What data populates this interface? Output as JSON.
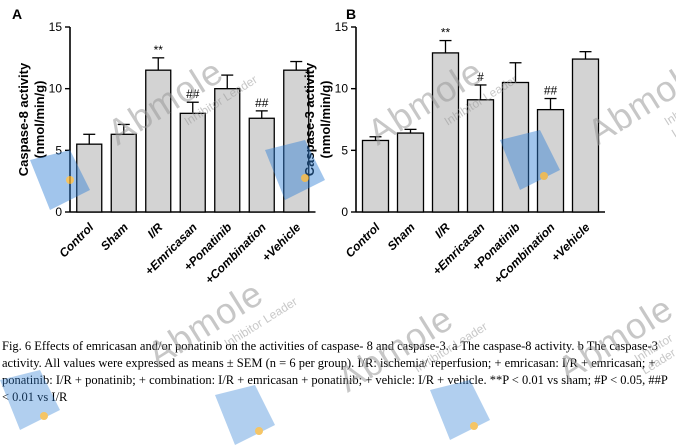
{
  "chart_data": [
    {
      "panel": "A",
      "type": "bar",
      "ylabel": "Caspase-8 activity (nmol/min/g)",
      "ylim": [
        0,
        15
      ],
      "yticks": [
        0,
        5,
        10,
        15
      ],
      "categories": [
        "Control",
        "Sham",
        "I/R",
        "+Emricasan",
        "+Ponatinib",
        "+Combination",
        "+Vehicle"
      ],
      "values": [
        5.5,
        6.3,
        11.5,
        8.0,
        10.0,
        7.6,
        11.5
      ],
      "errors": [
        0.8,
        0.8,
        1.0,
        0.9,
        1.1,
        0.6,
        0.7
      ],
      "annotations": [
        "",
        "",
        "**",
        "##",
        "",
        "##",
        ""
      ],
      "bar_color": "#d3d3d3"
    },
    {
      "panel": "B",
      "type": "bar",
      "ylabel": "Caspase-3 activity (nmol/min/g)",
      "ylim": [
        0,
        15
      ],
      "yticks": [
        0,
        5,
        10,
        15
      ],
      "categories": [
        "Control",
        "Sham",
        "I/R",
        "+Emricasan",
        "+Ponatinib",
        "+Combination",
        "+Vehicle"
      ],
      "values": [
        5.8,
        6.4,
        12.9,
        9.1,
        10.5,
        8.3,
        12.4
      ],
      "errors": [
        0.3,
        0.3,
        1.0,
        1.2,
        1.6,
        0.9,
        0.6
      ],
      "annotations": [
        "",
        "",
        "**",
        "#",
        "",
        "##",
        ""
      ],
      "bar_color": "#d3d3d3"
    }
  ],
  "caption": "Fig. 6 Effects of emricasan and/or ponatinib on the activities of caspase- 8 and caspase-3. a The caspase-8 activity. b The caspase-3 activity. All values were expressed as means ± SEM (n = 6 per group). I/R: ischemia/ reperfusion; + emricasan: I/R + emricasan; + ponatinib: I/R + ponatinib; + combination: I/R + emricasan + ponatinib; + vehicle: I/R + vehicle. **P < 0.01 vs sham; #P < 0.05, ##P < 0.01 vs I/R",
  "watermark": {
    "logo": "Abmole",
    "tagline": "Inhibitor Leader",
    "accent": "#2f7fd6"
  }
}
